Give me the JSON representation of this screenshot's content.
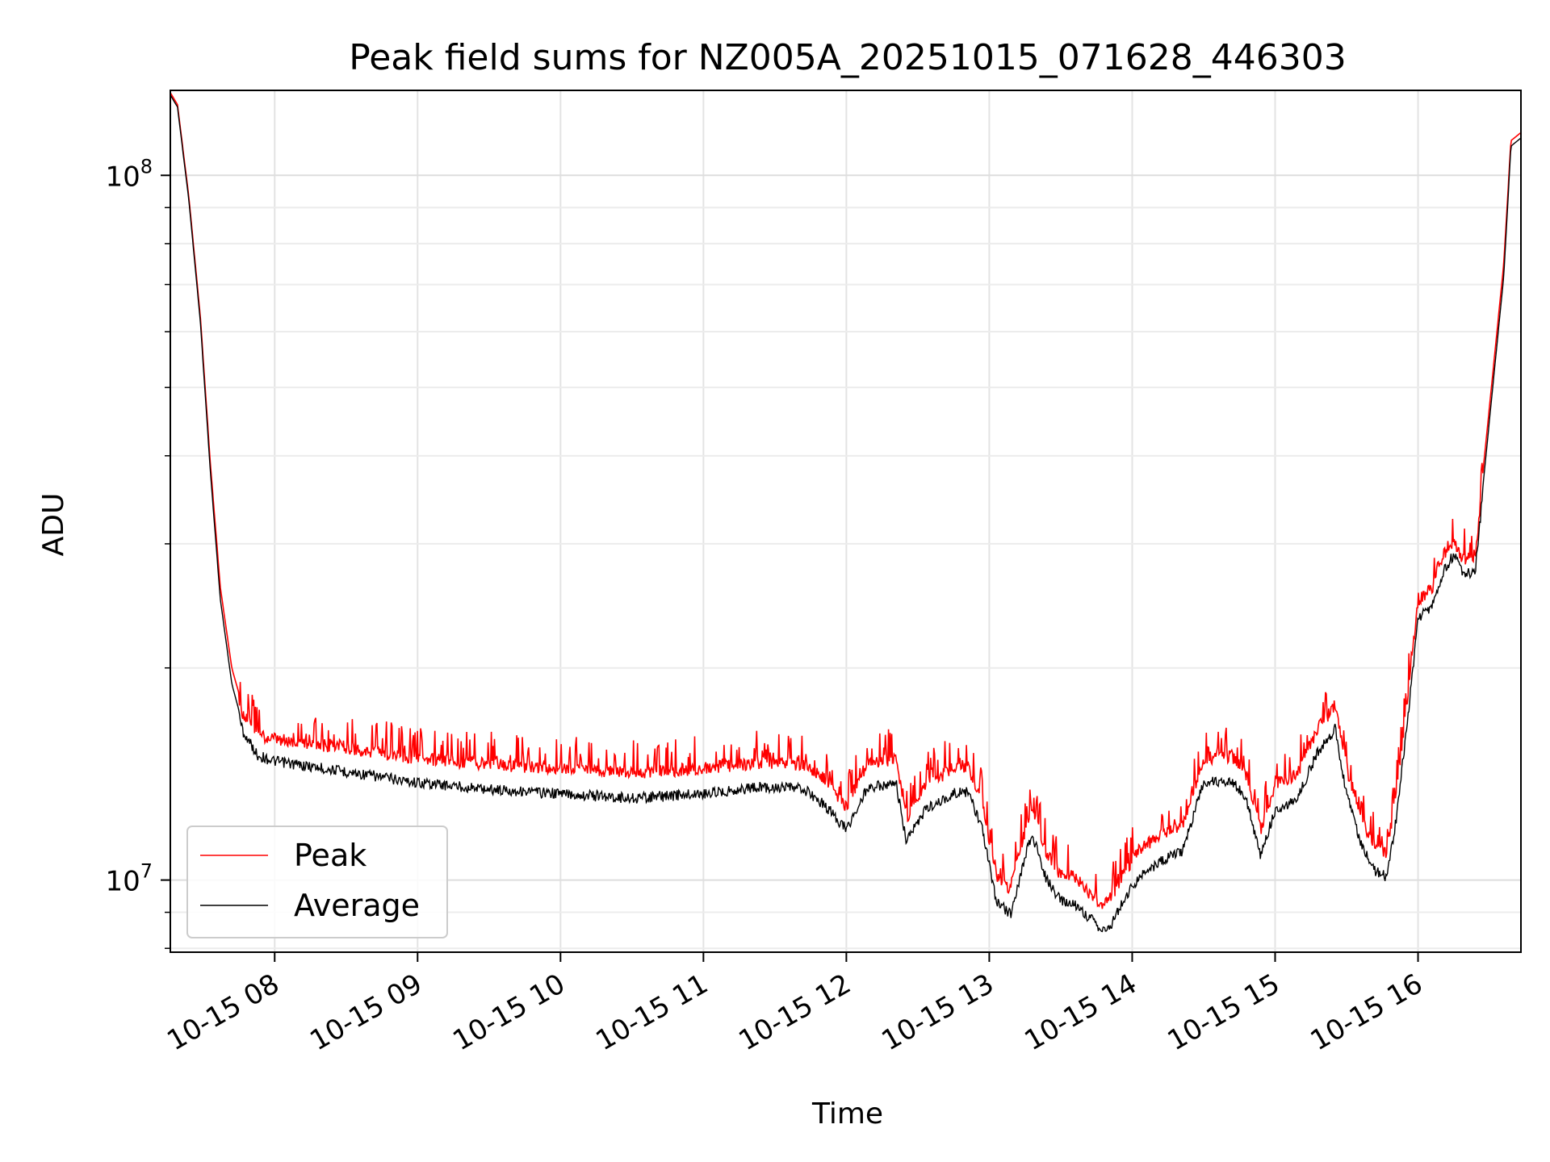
{
  "chart_data": {
    "type": "line",
    "title": "Peak field sums for NZ005A_20251015_071628_446303",
    "xlabel": "Time",
    "ylabel": "ADU",
    "yscale": "log",
    "xlim_hours": [
      7.27,
      16.72
    ],
    "ylim": [
      7900000,
      132000000
    ],
    "grid": true,
    "legend_loc": "lower-left",
    "x_ticks": [
      {
        "label": "10-15 08",
        "hour": 8
      },
      {
        "label": "10-15 09",
        "hour": 9
      },
      {
        "label": "10-15 10",
        "hour": 10
      },
      {
        "label": "10-15 11",
        "hour": 11
      },
      {
        "label": "10-15 12",
        "hour": 12
      },
      {
        "label": "10-15 13",
        "hour": 13
      },
      {
        "label": "10-15 14",
        "hour": 14
      },
      {
        "label": "10-15 15",
        "hour": 15
      },
      {
        "label": "10-15 16",
        "hour": 16
      }
    ],
    "y_ticks": [
      {
        "base": "10",
        "exp": "7",
        "value": 10000000
      },
      {
        "base": "10",
        "exp": "8",
        "value": 100000000
      }
    ],
    "series": [
      {
        "name": "Average",
        "color": "#000000",
        "points": [
          [
            7.27,
            130000000
          ],
          [
            7.32,
            125000000
          ],
          [
            7.4,
            92000000
          ],
          [
            7.48,
            62000000
          ],
          [
            7.55,
            38000000
          ],
          [
            7.62,
            25000000
          ],
          [
            7.7,
            19000000
          ],
          [
            7.78,
            16500000
          ],
          [
            7.88,
            15300000
          ],
          [
            8.0,
            15000000
          ],
          [
            8.5,
            14500000
          ],
          [
            9.0,
            14000000
          ],
          [
            9.5,
            13700000
          ],
          [
            10.0,
            13500000
          ],
          [
            10.5,
            13300000
          ],
          [
            11.0,
            13500000
          ],
          [
            11.4,
            13800000
          ],
          [
            11.7,
            13700000
          ],
          [
            11.85,
            13000000
          ],
          [
            12.0,
            12000000
          ],
          [
            12.15,
            13800000
          ],
          [
            12.35,
            13900000
          ],
          [
            12.42,
            11500000
          ],
          [
            12.55,
            12800000
          ],
          [
            12.75,
            13500000
          ],
          [
            12.85,
            13600000
          ],
          [
            12.95,
            12000000
          ],
          [
            13.05,
            9500000
          ],
          [
            13.15,
            9100000
          ],
          [
            13.25,
            11000000
          ],
          [
            13.3,
            11800000
          ],
          [
            13.4,
            10200000
          ],
          [
            13.5,
            9500000
          ],
          [
            13.6,
            9400000
          ],
          [
            13.7,
            9000000
          ],
          [
            13.8,
            8600000
          ],
          [
            13.85,
            8800000
          ],
          [
            13.95,
            9600000
          ],
          [
            14.05,
            10300000
          ],
          [
            14.2,
            10800000
          ],
          [
            14.35,
            11200000
          ],
          [
            14.5,
            14000000
          ],
          [
            14.7,
            14100000
          ],
          [
            14.8,
            13200000
          ],
          [
            14.9,
            11000000
          ],
          [
            15.0,
            12800000
          ],
          [
            15.15,
            13200000
          ],
          [
            15.3,
            15500000
          ],
          [
            15.42,
            16700000
          ],
          [
            15.5,
            13500000
          ],
          [
            15.6,
            11500000
          ],
          [
            15.7,
            10500000
          ],
          [
            15.78,
            10300000
          ],
          [
            15.85,
            12500000
          ],
          [
            15.95,
            19000000
          ],
          [
            16.0,
            24000000
          ],
          [
            16.1,
            25000000
          ],
          [
            16.18,
            28000000
          ],
          [
            16.25,
            29500000
          ],
          [
            16.32,
            27500000
          ],
          [
            16.4,
            28000000
          ],
          [
            16.5,
            45000000
          ],
          [
            16.6,
            72000000
          ],
          [
            16.65,
            110000000
          ],
          [
            16.72,
            113000000
          ]
        ]
      },
      {
        "name": "Peak",
        "color": "#ff0000",
        "points": [
          [
            7.27,
            131000000
          ],
          [
            7.32,
            126000000
          ],
          [
            7.4,
            93000000
          ],
          [
            7.48,
            63000000
          ],
          [
            7.55,
            39000000
          ],
          [
            7.62,
            26000000
          ],
          [
            7.7,
            20000000
          ],
          [
            7.78,
            17500000
          ],
          [
            7.88,
            16400000
          ],
          [
            8.0,
            16200000
          ],
          [
            8.5,
            15700000
          ],
          [
            9.0,
            15200000
          ],
          [
            9.5,
            14900000
          ],
          [
            10.0,
            14700000
          ],
          [
            10.5,
            14500000
          ],
          [
            11.0,
            14700000
          ],
          [
            11.4,
            15000000
          ],
          [
            11.7,
            14900000
          ],
          [
            11.85,
            14200000
          ],
          [
            12.0,
            13000000
          ],
          [
            12.15,
            15000000
          ],
          [
            12.35,
            15100000
          ],
          [
            12.42,
            12500000
          ],
          [
            12.55,
            13900000
          ],
          [
            12.75,
            14700000
          ],
          [
            12.85,
            14800000
          ],
          [
            12.95,
            13100000
          ],
          [
            13.05,
            10400000
          ],
          [
            13.15,
            9900000
          ],
          [
            13.25,
            12000000
          ],
          [
            13.3,
            12900000
          ],
          [
            13.4,
            11100000
          ],
          [
            13.5,
            10400000
          ],
          [
            13.6,
            10300000
          ],
          [
            13.7,
            9800000
          ],
          [
            13.8,
            9400000
          ],
          [
            13.85,
            9600000
          ],
          [
            13.95,
            10500000
          ],
          [
            14.05,
            11300000
          ],
          [
            14.2,
            11800000
          ],
          [
            14.35,
            12200000
          ],
          [
            14.5,
            15200000
          ],
          [
            14.7,
            15300000
          ],
          [
            14.8,
            14400000
          ],
          [
            14.9,
            12000000
          ],
          [
            15.0,
            14000000
          ],
          [
            15.15,
            14400000
          ],
          [
            15.3,
            16800000
          ],
          [
            15.42,
            18000000
          ],
          [
            15.5,
            14700000
          ],
          [
            15.6,
            12500000
          ],
          [
            15.7,
            11400000
          ],
          [
            15.78,
            11200000
          ],
          [
            15.85,
            13600000
          ],
          [
            15.95,
            20500000
          ],
          [
            16.0,
            25500000
          ],
          [
            16.1,
            26500000
          ],
          [
            16.18,
            29500000
          ],
          [
            16.25,
            31000000
          ],
          [
            16.32,
            29000000
          ],
          [
            16.4,
            29500000
          ],
          [
            16.5,
            47000000
          ],
          [
            16.6,
            75000000
          ],
          [
            16.65,
            112000000
          ],
          [
            16.72,
            115000000
          ]
        ]
      }
    ],
    "legend": [
      {
        "name": "Peak",
        "color": "#ff0000"
      },
      {
        "name": "Average",
        "color": "#000000"
      }
    ]
  }
}
